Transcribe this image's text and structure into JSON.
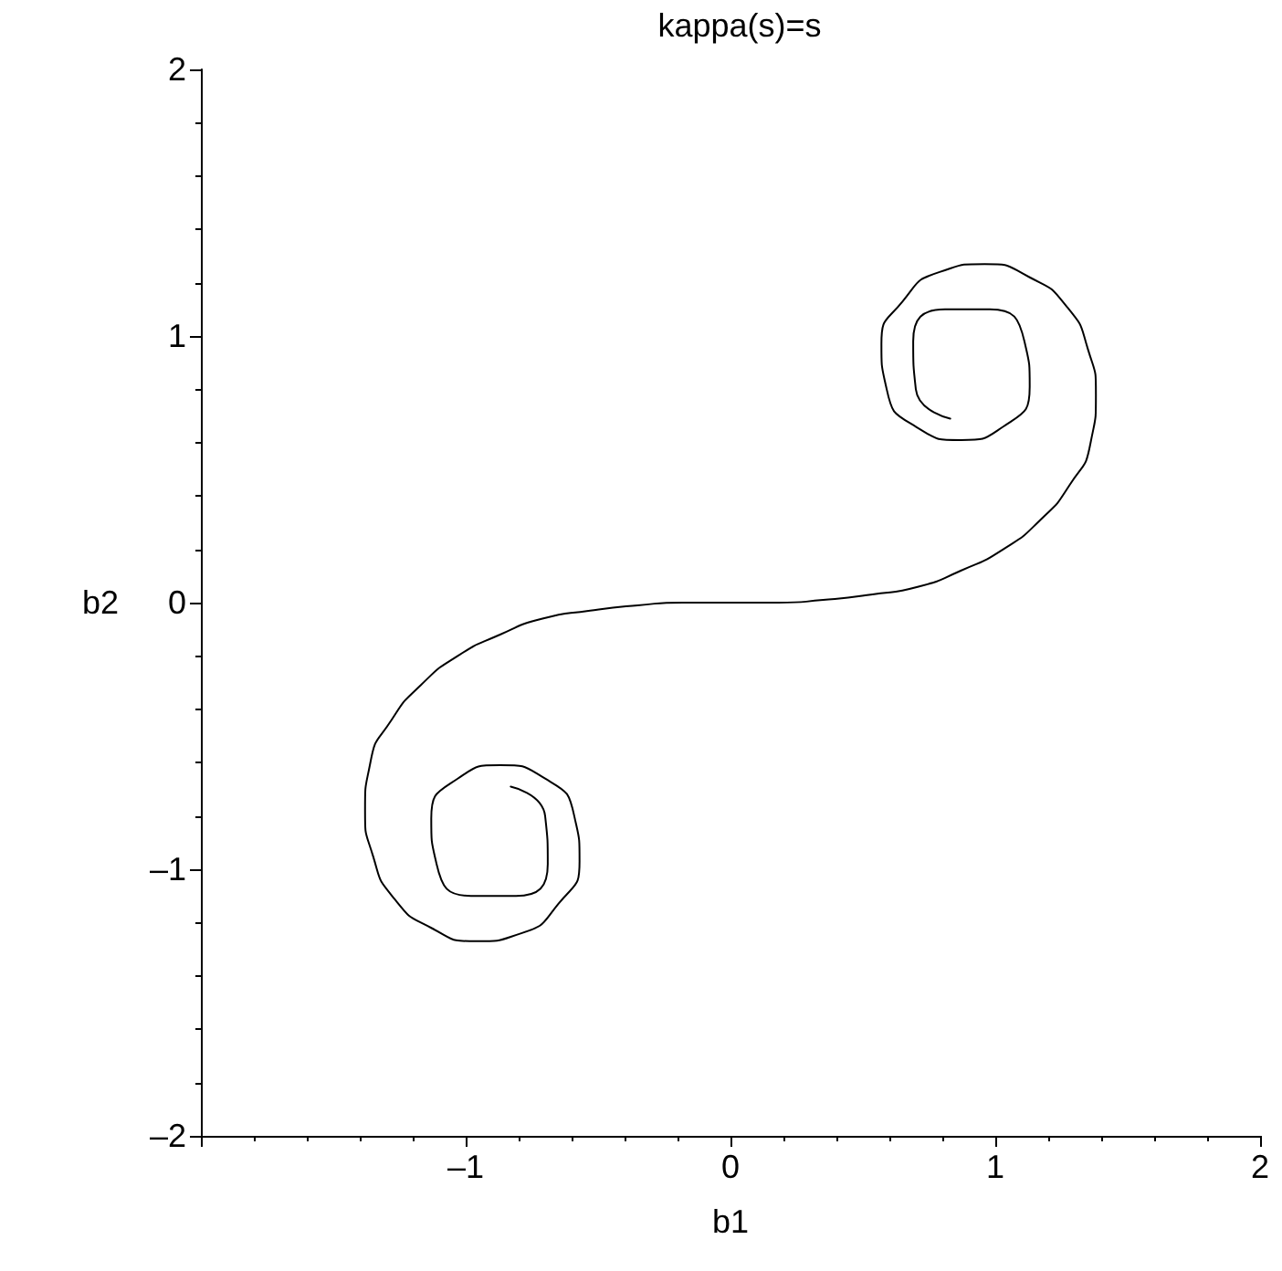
{
  "chart_data": {
    "type": "line",
    "title": "kappa(s)=s",
    "xlabel": "b1",
    "ylabel": "b2",
    "xlim": [
      -2,
      2
    ],
    "ylim": [
      -2,
      2
    ],
    "xticks": [
      {
        "value": -2,
        "label": null
      },
      {
        "value": -1,
        "label": "–1"
      },
      0,
      1,
      2
    ],
    "yticks": [
      {
        "value": -2,
        "label": "–2"
      },
      {
        "value": -1,
        "label": "–1"
      },
      0,
      1,
      2
    ],
    "grid": false,
    "marker": "none",
    "line_style": "solid",
    "series": [
      {
        "color": "#000000",
        "x": [
          -0.83,
          -0.7,
          -0.69,
          -0.81,
          -0.98,
          -1.11,
          -1.13,
          -1.03,
          -0.87,
          -0.7,
          -0.59,
          -0.57,
          -0.65,
          -0.79,
          -0.96,
          -1.13,
          -1.27,
          -1.35,
          -1.38,
          -1.36,
          -1.28,
          -1.17,
          -1.03,
          -0.87,
          -0.71,
          -0.53,
          -0.35,
          -0.18,
          0,
          0.18,
          0.35,
          0.53,
          0.71,
          0.87,
          1.03,
          1.17,
          1.28,
          1.36,
          1.38,
          1.35,
          1.27,
          1.13,
          0.96,
          0.79,
          0.65,
          0.57,
          0.59,
          0.7,
          0.87,
          1.03,
          1.13,
          1.11,
          0.98,
          0.81,
          0.69,
          0.7,
          0.83
        ],
        "values": [
          -0.69,
          -0.8,
          -0.98,
          -1.1,
          -1.1,
          -0.98,
          -0.81,
          -0.66,
          -0.61,
          -0.66,
          -0.8,
          -0.97,
          -1.13,
          -1.24,
          -1.27,
          -1.22,
          -1.11,
          -0.95,
          -0.78,
          -0.6,
          -0.44,
          -0.31,
          -0.2,
          -0.12,
          -0.06,
          -0.03,
          -0.01,
          0,
          0,
          0,
          0.01,
          0.03,
          0.06,
          0.12,
          0.2,
          0.31,
          0.44,
          0.6,
          0.78,
          0.95,
          1.11,
          1.22,
          1.27,
          1.24,
          1.13,
          0.97,
          0.8,
          0.66,
          0.61,
          0.66,
          0.81,
          0.98,
          1.1,
          1.1,
          0.98,
          0.8,
          0.69
        ]
      }
    ]
  }
}
